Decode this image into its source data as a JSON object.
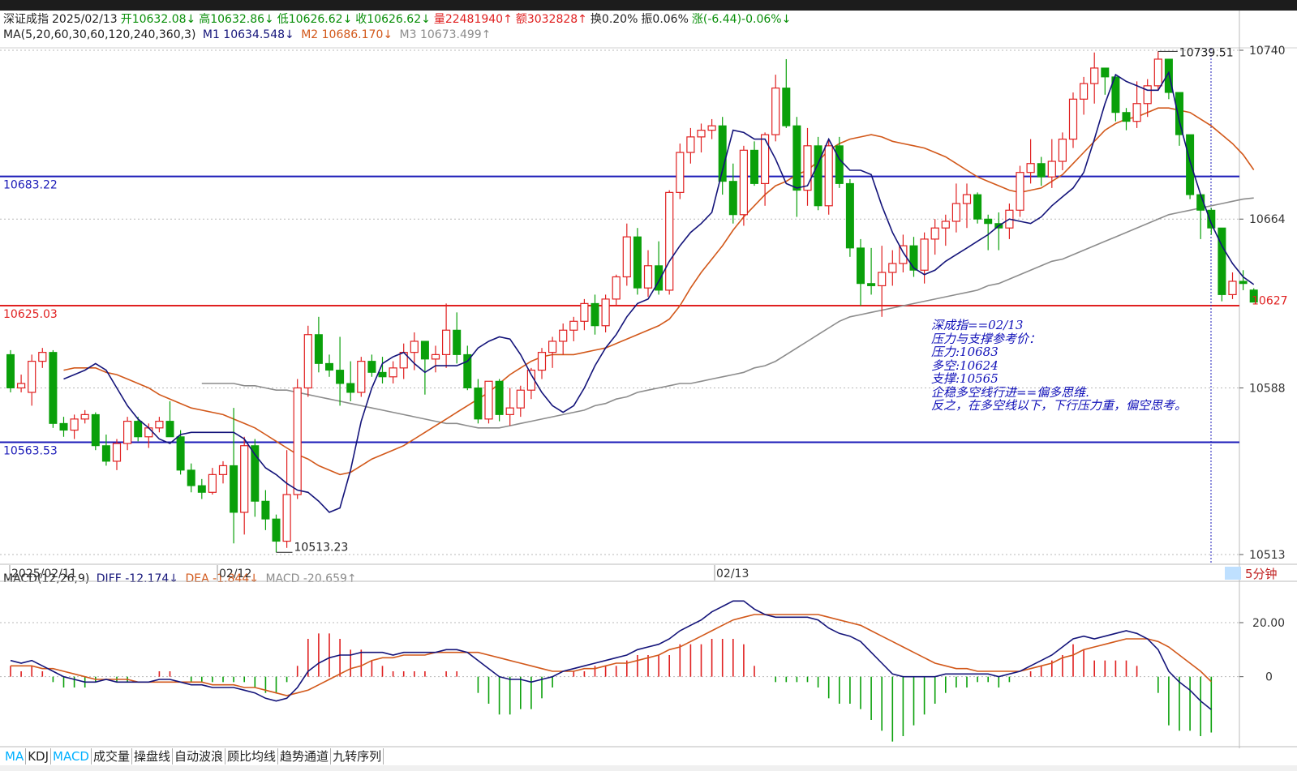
{
  "header": {
    "name": "深证成指",
    "date": "2025/02/13",
    "open": "开10632.08↓",
    "high": "高10632.86↓",
    "low": "低10626.62↓",
    "close": "收10626.62↓",
    "volume": "量22481940↑",
    "amount": "额3032828↑",
    "turnover": "换0.20%",
    "amplitude": "振0.06%",
    "change": "涨(-6.44)-0.06%↓"
  },
  "ma_line": {
    "label": "MA(5,20,60,30,60,120,240,360,3)",
    "m1": "M1 10634.548↓",
    "m2": "M2 10686.170↓",
    "m3": "M3 10673.499↑"
  },
  "macd_line": {
    "label": "MACD(12,26,9)",
    "diff": "DIFF -12.174↓",
    "dea": "DEA -1.844↓",
    "macd": "MACD -20.659↑"
  },
  "price_axis": {
    "ticks": [
      "10740",
      "10664",
      "10588",
      "10513"
    ],
    "last": "10627"
  },
  "macd_axis": {
    "ticks": [
      "20.00",
      "0"
    ]
  },
  "date_axis": {
    "labels": [
      "2025/02/11",
      "02/12",
      "02/13"
    ]
  },
  "period": "5分钟",
  "levels": [
    {
      "label": "10683.22",
      "value": 10683.22,
      "color": "#1a1ab8"
    },
    {
      "label": "10625.03",
      "value": 10625.03,
      "color": "#e02020"
    },
    {
      "label": "10563.53",
      "value": 10563.53,
      "color": "#1a1ab8"
    }
  ],
  "annotations": {
    "high": "10739.51",
    "low": "10513.23"
  },
  "note": {
    "lines": [
      "深成指==02/13",
      "压力与支撑参考价：",
      "压力:10683",
      "多空:10624",
      "支撑:10565",
      "企稳多空线行进==偏多思维.",
      "反之，在多空线以下，下行压力重，偏空思考。"
    ]
  },
  "tabs": [
    "MA",
    "KDJ",
    "MACD",
    "成交量",
    "操盘线",
    "自动波浪",
    "顾比均线",
    "趋势通道",
    "九转序列"
  ],
  "colors": {
    "up": "#e02020",
    "down": "#0aa00a",
    "m1": "#14147a",
    "m2": "#d2581a",
    "m3": "#8c8c8c",
    "dea": "#d2581a",
    "diff": "#14147a"
  },
  "chart_data": {
    "type": "candlestick",
    "title": "深证成指 5分钟",
    "price_range": [
      10513,
      10740
    ],
    "candles": [
      [
        10603,
        10605,
        10586,
        10588
      ],
      [
        10588,
        10594,
        10586,
        10590
      ],
      [
        10586,
        10603,
        10580,
        10600
      ],
      [
        10600,
        10606,
        10597,
        10604
      ],
      [
        10604,
        10605,
        10570,
        10572
      ],
      [
        10572,
        10575,
        10566,
        10569
      ],
      [
        10569,
        10576,
        10565,
        10574
      ],
      [
        10574,
        10578,
        10572,
        10576
      ],
      [
        10576,
        10577,
        10560,
        10562
      ],
      [
        10562,
        10567,
        10553,
        10555
      ],
      [
        10555,
        10565,
        10551,
        10563
      ],
      [
        10563,
        10575,
        10560,
        10573
      ],
      [
        10573,
        10575,
        10564,
        10566
      ],
      [
        10566,
        10572,
        10561,
        10570
      ],
      [
        10570,
        10575,
        10568,
        10573
      ],
      [
        10573,
        10582,
        10567,
        10566
      ],
      [
        10566,
        10569,
        10549,
        10551
      ],
      [
        10551,
        10554,
        10541,
        10544
      ],
      [
        10544,
        10547,
        10538,
        10541
      ],
      [
        10541,
        10552,
        10540,
        10549
      ],
      [
        10549,
        10555,
        10545,
        10553
      ],
      [
        10553,
        10579,
        10518,
        10532
      ],
      [
        10532,
        10566,
        10522,
        10562
      ],
      [
        10562,
        10565,
        10530,
        10537
      ],
      [
        10537,
        10542,
        10524,
        10529
      ],
      [
        10529,
        10531,
        10514,
        10519
      ],
      [
        10519,
        10560,
        10516,
        10540
      ],
      [
        10540,
        10592,
        10538,
        10588
      ],
      [
        10588,
        10616,
        10584,
        10612
      ],
      [
        10612,
        10620,
        10595,
        10599
      ],
      [
        10599,
        10603,
        10593,
        10596
      ],
      [
        10596,
        10611,
        10580,
        10590
      ],
      [
        10590,
        10600,
        10582,
        10586
      ],
      [
        10586,
        10602,
        10584,
        10600
      ],
      [
        10600,
        10603,
        10593,
        10595
      ],
      [
        10595,
        10602,
        10590,
        10593
      ],
      [
        10593,
        10600,
        10590,
        10597
      ],
      [
        10597,
        10608,
        10592,
        10604
      ],
      [
        10604,
        10613,
        10596,
        10609
      ],
      [
        10609,
        10609,
        10585,
        10601
      ],
      [
        10601,
        10607,
        10595,
        10603
      ],
      [
        10603,
        10626,
        10597,
        10614
      ],
      [
        10614,
        10622,
        10599,
        10603
      ],
      [
        10603,
        10607,
        10587,
        10588
      ],
      [
        10588,
        10592,
        10572,
        10574
      ],
      [
        10574,
        10591,
        10572,
        10591
      ],
      [
        10591,
        10592,
        10573,
        10576
      ],
      [
        10576,
        10588,
        10571,
        10579
      ],
      [
        10579,
        10589,
        10575,
        10587
      ],
      [
        10587,
        10597,
        10583,
        10596
      ],
      [
        10596,
        10606,
        10592,
        10604
      ],
      [
        10604,
        10611,
        10597,
        10609
      ],
      [
        10609,
        10617,
        10603,
        10614
      ],
      [
        10614,
        10620,
        10609,
        10618
      ],
      [
        10618,
        10628,
        10614,
        10626
      ],
      [
        10626,
        10630,
        10612,
        10616
      ],
      [
        10616,
        10630,
        10613,
        10628
      ],
      [
        10628,
        10639,
        10625,
        10638
      ],
      [
        10638,
        10662,
        10634,
        10656
      ],
      [
        10656,
        10660,
        10630,
        10633
      ],
      [
        10633,
        10650,
        10629,
        10643
      ],
      [
        10643,
        10654,
        10630,
        10632
      ],
      [
        10632,
        10677,
        10630,
        10676
      ],
      [
        10676,
        10698,
        10673,
        10694
      ],
      [
        10694,
        10705,
        10689,
        10701
      ],
      [
        10701,
        10707,
        10694,
        10704
      ],
      [
        10704,
        10709,
        10700,
        10706
      ],
      [
        10706,
        10710,
        10675,
        10681
      ],
      [
        10681,
        10689,
        10662,
        10666
      ],
      [
        10666,
        10697,
        10661,
        10695
      ],
      [
        10695,
        10699,
        10679,
        10680
      ],
      [
        10680,
        10703,
        10670,
        10702
      ],
      [
        10702,
        10729,
        10699,
        10723
      ],
      [
        10723,
        10736,
        10705,
        10706
      ],
      [
        10706,
        10710,
        10665,
        10677
      ],
      [
        10677,
        10705,
        10670,
        10697
      ],
      [
        10697,
        10701,
        10668,
        10670
      ],
      [
        10670,
        10700,
        10666,
        10697
      ],
      [
        10697,
        10701,
        10678,
        10680
      ],
      [
        10680,
        10682,
        10647,
        10651
      ],
      [
        10651,
        10655,
        10625,
        10635
      ],
      [
        10635,
        10651,
        10630,
        10634
      ],
      [
        10634,
        10652,
        10620,
        10640
      ],
      [
        10640,
        10650,
        10634,
        10644
      ],
      [
        10644,
        10657,
        10640,
        10652
      ],
      [
        10652,
        10656,
        10638,
        10641
      ],
      [
        10641,
        10658,
        10635,
        10655
      ],
      [
        10655,
        10664,
        10648,
        10660
      ],
      [
        10660,
        10666,
        10652,
        10663
      ],
      [
        10663,
        10680,
        10658,
        10671
      ],
      [
        10671,
        10680,
        10660,
        10675
      ],
      [
        10675,
        10676,
        10662,
        10664
      ],
      [
        10664,
        10666,
        10650,
        10662
      ],
      [
        10662,
        10667,
        10650,
        10660
      ],
      [
        10660,
        10671,
        10655,
        10668
      ],
      [
        10668,
        10688,
        10665,
        10685
      ],
      [
        10685,
        10700,
        10680,
        10689
      ],
      [
        10689,
        10692,
        10679,
        10683
      ],
      [
        10683,
        10700,
        10678,
        10690
      ],
      [
        10690,
        10703,
        10686,
        10700
      ],
      [
        10700,
        10721,
        10696,
        10718
      ],
      [
        10718,
        10728,
        10711,
        10725
      ],
      [
        10725,
        10739,
        10716,
        10732
      ],
      [
        10732,
        10730,
        10720,
        10728
      ],
      [
        10728,
        10728,
        10708,
        10712
      ],
      [
        10712,
        10714,
        10704,
        10708
      ],
      [
        10708,
        10726,
        10705,
        10716
      ],
      [
        10716,
        10727,
        10710,
        10724
      ],
      [
        10724,
        10739.51,
        10722,
        10736
      ],
      [
        10736,
        10736,
        10718,
        10721
      ],
      [
        10721,
        10721,
        10697,
        10702
      ],
      [
        10702,
        10702,
        10673,
        10675
      ],
      [
        10675,
        10675,
        10655,
        10668
      ],
      [
        10668,
        10669,
        10657,
        10660
      ],
      [
        10660,
        10660,
        10627,
        10630
      ],
      [
        10630,
        10640,
        10628,
        10636
      ],
      [
        10636,
        10641,
        10632,
        10635
      ],
      [
        10632.08,
        10632.86,
        10626.62,
        10626.62
      ]
    ],
    "ma": {
      "M1": [
        10592,
        10594,
        10596,
        10599,
        10596,
        10588,
        10580,
        10574,
        10570,
        10565,
        10563,
        10567,
        10568,
        10568,
        10568,
        10568,
        10568,
        10565,
        10558,
        10552,
        10549,
        10545,
        10542,
        10541,
        10537,
        10532,
        10534,
        10551,
        10573,
        10588,
        10599,
        10602,
        10604,
        10599,
        10595,
        10598,
        10598,
        10598,
        10600,
        10606,
        10609,
        10611,
        10610,
        10603,
        10594,
        10586,
        10580,
        10577,
        10580,
        10588,
        10598,
        10606,
        10612,
        10620,
        10626,
        10628,
        10636,
        10645,
        10652,
        10658,
        10662,
        10667,
        10686,
        10704,
        10703,
        10700,
        10700,
        10691,
        10680,
        10678,
        10679,
        10689,
        10700,
        10691,
        10686,
        10686,
        10684,
        10670,
        10658,
        10649,
        10642,
        10639,
        10641,
        10645,
        10648,
        10651,
        10654,
        10657,
        10661,
        10664,
        10663,
        10662,
        10665,
        10670,
        10674,
        10678,
        10685,
        10700,
        10716,
        10729,
        10726,
        10724,
        10722,
        10722,
        10730,
        10708,
        10690,
        10675,
        10662,
        10652,
        10644,
        10638,
        10634.548
      ],
      "M2": [
        10596,
        10597,
        10597,
        10597,
        10595,
        10594,
        10592,
        10590,
        10588,
        10585,
        10583,
        10581,
        10579,
        10578,
        10577,
        10576,
        10574,
        10572,
        10570,
        10567,
        10564,
        10561,
        10558,
        10556,
        10553,
        10551,
        10549,
        10550,
        10553,
        10556,
        10558,
        10560,
        10562,
        10565,
        10568,
        10571,
        10574,
        10577,
        10580,
        10583,
        10586,
        10590,
        10594,
        10597,
        10600,
        10602,
        10603,
        10603,
        10603,
        10604,
        10605,
        10606,
        10608,
        10610,
        10612,
        10614,
        10616,
        10619,
        10625,
        10633,
        10640,
        10646,
        10652,
        10659,
        10665,
        10670,
        10675,
        10679,
        10681,
        10684,
        10686,
        10690,
        10695,
        10698,
        10700,
        10701,
        10702,
        10701,
        10699,
        10698,
        10697,
        10696,
        10694,
        10692,
        10689,
        10686,
        10683,
        10681,
        10679,
        10677,
        10676,
        10677,
        10678,
        10681,
        10684,
        10689,
        10694,
        10699,
        10704,
        10707,
        10709,
        10710,
        10712,
        10714,
        10714,
        10713,
        10712,
        10709,
        10706,
        10702,
        10698,
        10693,
        10686.17
      ],
      "M3": [
        10590,
        10590,
        10590,
        10590,
        10589,
        10589,
        10588,
        10587,
        10587,
        10586,
        10585,
        10584,
        10583,
        10582,
        10581,
        10580,
        10579,
        10578,
        10577,
        10576,
        10575,
        10574,
        10573,
        10572,
        10572,
        10571,
        10570,
        10570,
        10570,
        10571,
        10572,
        10573,
        10574,
        10575,
        10576,
        10577,
        10578,
        10580,
        10581,
        10583,
        10584,
        10586,
        10587,
        10588,
        10589,
        10590,
        10590,
        10591,
        10592,
        10593,
        10594,
        10595,
        10597,
        10598,
        10600,
        10603,
        10606,
        10609,
        10612,
        10615,
        10618,
        10620,
        10621,
        10622,
        10623,
        10624,
        10625,
        10626,
        10627,
        10628,
        10629,
        10630,
        10631,
        10632,
        10634,
        10635,
        10637,
        10639,
        10641,
        10643,
        10645,
        10646,
        10648,
        10650,
        10652,
        10654,
        10656,
        10658,
        10660,
        10662,
        10664,
        10666,
        10667,
        10668,
        10669,
        10670,
        10671,
        10672,
        10673,
        10673.499
      ]
    },
    "macd": {
      "range": [
        -25,
        29
      ],
      "diff": [
        6,
        5,
        6,
        4,
        2,
        0,
        -1,
        -2,
        -2,
        -1,
        -2,
        -2,
        -2,
        -2,
        -1,
        -1,
        -2,
        -3,
        -3,
        -4,
        -4,
        -4,
        -5,
        -6,
        -8,
        -9,
        -8,
        -4,
        2,
        5,
        7,
        8,
        8,
        9,
        9,
        9,
        8,
        9,
        9,
        9,
        9,
        10,
        10,
        9,
        6,
        3,
        0,
        -1,
        -1,
        -2,
        -1,
        0,
        2,
        3,
        4,
        5,
        6,
        7,
        8,
        10,
        11,
        12,
        14,
        17,
        19,
        21,
        24,
        26,
        28,
        28,
        25,
        23,
        22,
        22,
        22,
        22,
        21,
        18,
        16,
        15,
        13,
        9,
        5,
        1,
        0,
        0,
        0,
        0,
        1,
        1,
        1,
        1,
        1,
        0,
        1,
        2,
        4,
        6,
        8,
        11,
        14,
        15,
        14,
        15,
        16,
        17,
        16,
        14,
        10,
        2,
        -2,
        -5,
        -9,
        -12.174
      ],
      "dea": [
        4,
        4,
        4,
        3,
        3,
        2,
        1,
        0,
        -1,
        -1,
        -1,
        -1,
        -2,
        -2,
        -2,
        -2,
        -2,
        -2,
        -2,
        -3,
        -3,
        -3,
        -4,
        -4,
        -5,
        -6,
        -7,
        -6,
        -5,
        -3,
        -1,
        1,
        3,
        4,
        6,
        7,
        7,
        8,
        8,
        8,
        9,
        9,
        9,
        9,
        9,
        8,
        7,
        6,
        5,
        4,
        3,
        2,
        2,
        2,
        3,
        3,
        4,
        5,
        5,
        6,
        7,
        8,
        10,
        11,
        13,
        15,
        17,
        19,
        21,
        22,
        23,
        23,
        23,
        23,
        23,
        23,
        23,
        22,
        21,
        20,
        19,
        17,
        15,
        13,
        11,
        9,
        7,
        5,
        4,
        3,
        3,
        2,
        2,
        2,
        2,
        2,
        3,
        4,
        5,
        7,
        8,
        10,
        11,
        12,
        13,
        14,
        14,
        14,
        13,
        11,
        8,
        5,
        2,
        -1.844
      ]
    }
  }
}
